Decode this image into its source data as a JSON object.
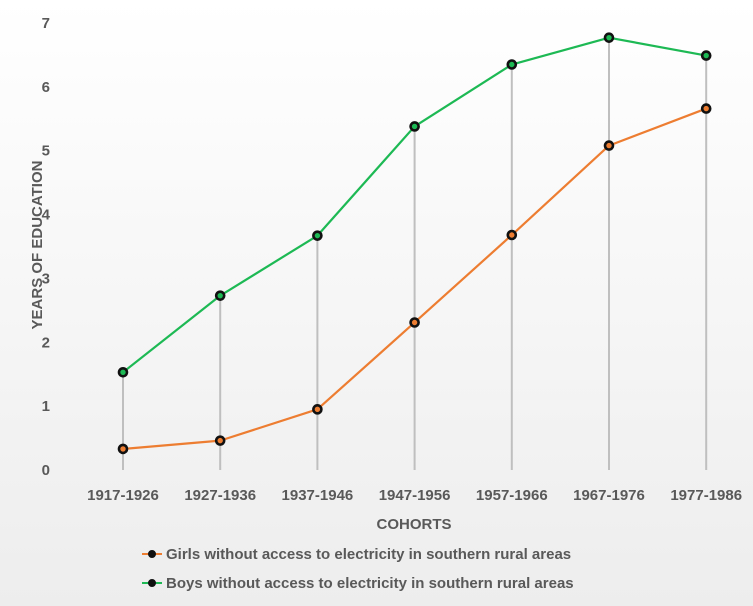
{
  "colors": {
    "girls": "#ED7D31",
    "boys": "#1DB954",
    "marker": "#111111",
    "drop_line": "#BFBFBF",
    "axis_text": "#595959",
    "plot_bg_top": "#FFFFFF",
    "plot_bg_bottom": "#EDEDED"
  },
  "chart_data": {
    "type": "line",
    "title": "",
    "xlabel": "COHORTS",
    "ylabel": "YEARS OF EDUCATION",
    "ylim": [
      0,
      7
    ],
    "yticks": [
      "0",
      "1",
      "2",
      "3",
      "4",
      "5",
      "6",
      "7"
    ],
    "categories": [
      "1917-1926",
      "1927-1936",
      "1937-1946",
      "1947-1956",
      "1957-1966",
      "1967-1976",
      "1977-1986"
    ],
    "series": [
      {
        "name": "Girls without access to electricity in southern rural areas",
        "color_key": "girls",
        "values": [
          0.33,
          0.46,
          0.95,
          2.31,
          3.68,
          5.08,
          5.66
        ]
      },
      {
        "name": "Boys without access to electricity in southern rural areas",
        "color_key": "boys",
        "values": [
          1.53,
          2.73,
          3.67,
          5.38,
          6.35,
          6.77,
          6.49
        ]
      }
    ],
    "drop_lines": true,
    "grid": false,
    "legend_position": "bottom"
  }
}
